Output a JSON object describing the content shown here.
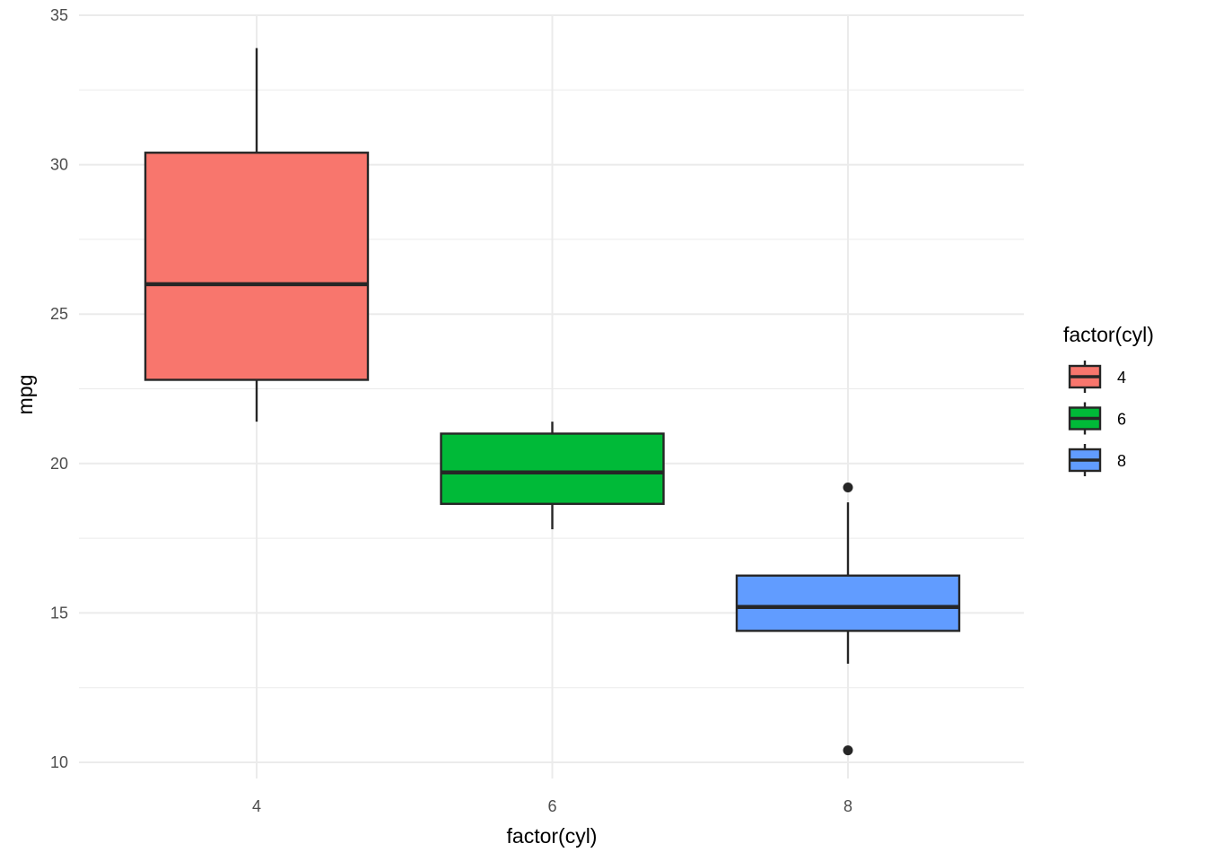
{
  "chart_data": {
    "type": "boxplot",
    "xlabel": "factor(cyl)",
    "ylabel": "mpg",
    "categories": [
      "4",
      "6",
      "8"
    ],
    "ylim": [
      9.2,
      35
    ],
    "y_ticks": [
      10,
      15,
      20,
      25,
      30,
      35
    ],
    "y_tick_labels": [
      "10",
      "15",
      "20",
      "25",
      "30",
      "35"
    ],
    "grid": true,
    "legend": {
      "title": "factor(cyl)",
      "placement": "right",
      "entries": [
        "4",
        "6",
        "8"
      ]
    },
    "series": [
      {
        "category": "4",
        "color": "#F8766D",
        "whisker_low": 21.4,
        "q1": 22.8,
        "median": 26.0,
        "q3": 30.4,
        "whisker_high": 33.9,
        "outliers": []
      },
      {
        "category": "6",
        "color": "#00BA38",
        "whisker_low": 17.8,
        "q1": 18.65,
        "median": 19.7,
        "q3": 21.0,
        "whisker_high": 21.4,
        "outliers": []
      },
      {
        "category": "8",
        "color": "#619CFF",
        "whisker_low": 13.3,
        "q1": 14.4,
        "median": 15.2,
        "q3": 16.25,
        "whisker_high": 18.7,
        "outliers": [
          10.4,
          19.2
        ]
      }
    ]
  }
}
